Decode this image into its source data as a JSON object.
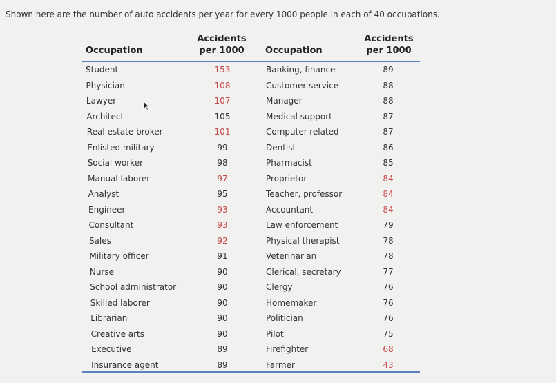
{
  "intro_text": "Shown here are the number of auto accidents per year for every 1000 people in each of 40 occupations.",
  "headers": {
    "occupation": "Occupation",
    "accidents_line1": "Accidents",
    "accidents_line2": "per 1000"
  },
  "left_rows": [
    {
      "occupation": "Student",
      "accidents": "153",
      "red": true
    },
    {
      "occupation": "Physician",
      "accidents": "108",
      "red": true
    },
    {
      "occupation": "Lawyer",
      "accidents": "107",
      "red": true
    },
    {
      "occupation": "Architect",
      "accidents": "105",
      "red": false
    },
    {
      "occupation": "Real estate broker",
      "accidents": "101",
      "red": true
    },
    {
      "occupation": "Enlisted military",
      "accidents": "99",
      "red": false
    },
    {
      "occupation": "Social worker",
      "accidents": "98",
      "red": false
    },
    {
      "occupation": "Manual laborer",
      "accidents": "97",
      "red": true
    },
    {
      "occupation": "Analyst",
      "accidents": "95",
      "red": false
    },
    {
      "occupation": "Engineer",
      "accidents": "93",
      "red": true
    },
    {
      "occupation": "Consultant",
      "accidents": "93",
      "red": true
    },
    {
      "occupation": "Sales",
      "accidents": "92",
      "red": true
    },
    {
      "occupation": "Military officer",
      "accidents": "91",
      "red": false
    },
    {
      "occupation": "Nurse",
      "accidents": "90",
      "red": false
    },
    {
      "occupation": "School administrator",
      "accidents": "90",
      "red": false
    },
    {
      "occupation": "Skilled laborer",
      "accidents": "90",
      "red": false
    },
    {
      "occupation": "Librarian",
      "accidents": "90",
      "red": false
    },
    {
      "occupation": "Creative arts",
      "accidents": "90",
      "red": false
    },
    {
      "occupation": "Executive",
      "accidents": "89",
      "red": false
    },
    {
      "occupation": "Insurance agent",
      "accidents": "89",
      "red": false
    }
  ],
  "right_rows": [
    {
      "occupation": "Banking, finance",
      "accidents": "89",
      "red": false
    },
    {
      "occupation": "Customer service",
      "accidents": "88",
      "red": false
    },
    {
      "occupation": "Manager",
      "accidents": "88",
      "red": false
    },
    {
      "occupation": "Medical support",
      "accidents": "87",
      "red": false
    },
    {
      "occupation": "Computer-related",
      "accidents": "87",
      "red": false
    },
    {
      "occupation": "Dentist",
      "accidents": "86",
      "red": false
    },
    {
      "occupation": "Pharmacist",
      "accidents": "85",
      "red": false
    },
    {
      "occupation": "Proprietor",
      "accidents": "84",
      "red": true
    },
    {
      "occupation": "Teacher, professor",
      "accidents": "84",
      "red": true
    },
    {
      "occupation": "Accountant",
      "accidents": "84",
      "red": true
    },
    {
      "occupation": "Law enforcement",
      "accidents": "79",
      "red": false
    },
    {
      "occupation": "Physical therapist",
      "accidents": "78",
      "red": false
    },
    {
      "occupation": "Veterinarian",
      "accidents": "78",
      "red": false
    },
    {
      "occupation": "Clerical, secretary",
      "accidents": "77",
      "red": false
    },
    {
      "occupation": "Clergy",
      "accidents": "76",
      "red": false
    },
    {
      "occupation": "Homemaker",
      "accidents": "76",
      "red": false
    },
    {
      "occupation": "Politician",
      "accidents": "76",
      "red": false
    },
    {
      "occupation": "Pilot",
      "accidents": "75",
      "red": false
    },
    {
      "occupation": "Firefighter",
      "accidents": "68",
      "red": true
    },
    {
      "occupation": "Farmer",
      "accidents": "43",
      "red": true
    }
  ],
  "colors": {
    "highlight_value": "#c64a4a",
    "rule": "#5b82bd"
  },
  "icons": {
    "cursor": "mouse-pointer-icon"
  }
}
